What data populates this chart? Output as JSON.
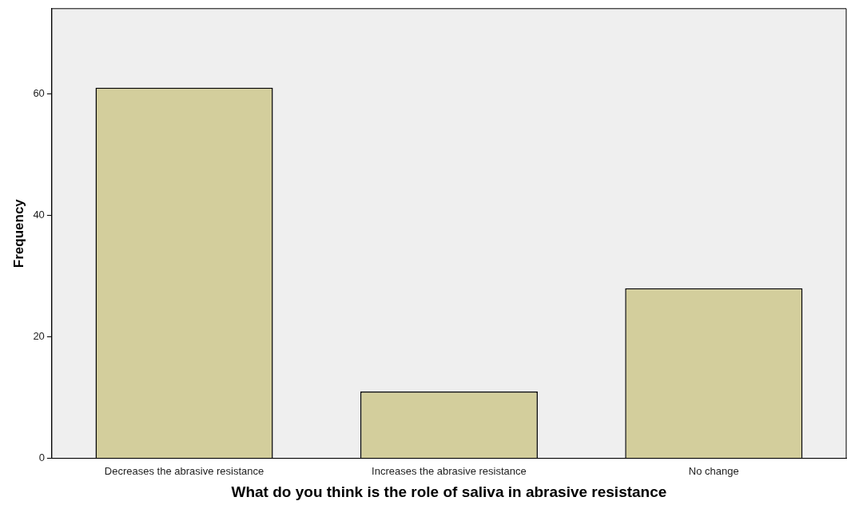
{
  "chart_data": {
    "type": "bar",
    "xlabel": "What do you think is the role of saliva in abrasive resistance",
    "ylabel": "Frequency",
    "categories": [
      "Decreases the abrasive resistance",
      "Increases the abrasive resistance",
      "No change"
    ],
    "values": [
      61,
      11,
      28
    ],
    "color": "#d3ce9c",
    "ylim": [
      0,
      74
    ],
    "yticks": [
      0,
      20,
      40,
      60
    ],
    "grid": false,
    "legend": false
  }
}
